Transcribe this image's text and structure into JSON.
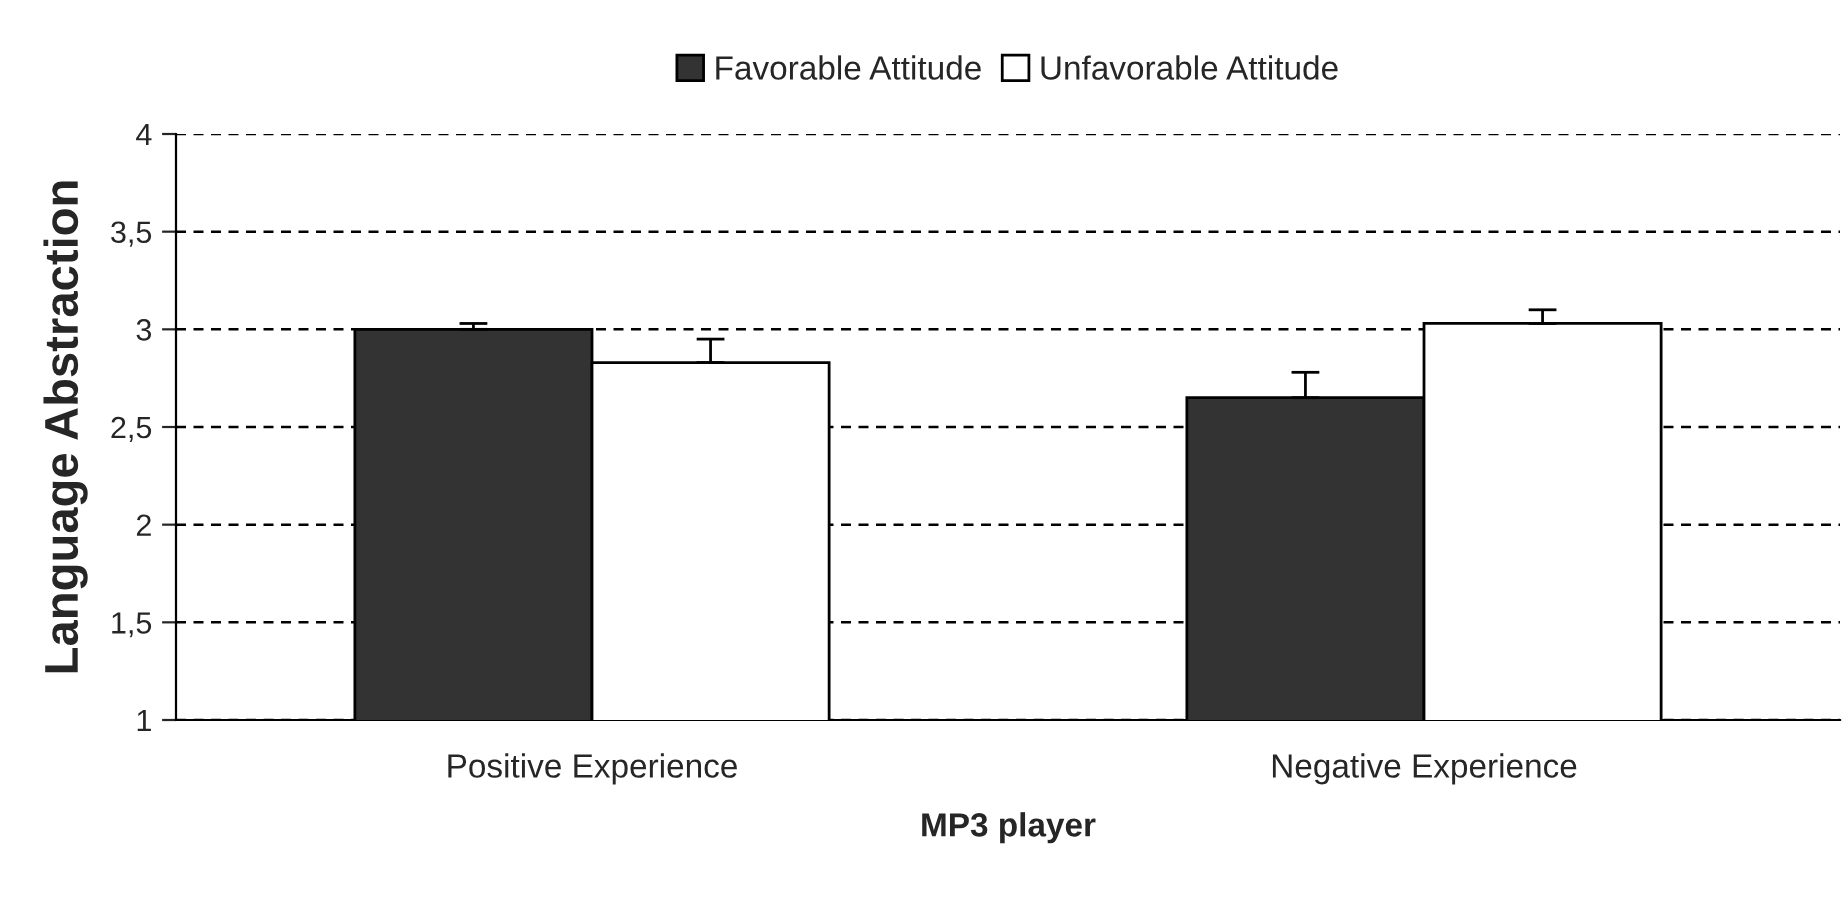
{
  "chart_data": {
    "type": "bar",
    "xlabel": "MP3 player",
    "ylabel": "Language Abstraction",
    "categories": [
      "Positive Experience",
      "Negative Experience"
    ],
    "series": [
      {
        "name": "Favorable Attitude",
        "color": "#333333",
        "values": [
          3.0,
          2.65
        ],
        "errors": [
          [
            3.0,
            3.03
          ],
          [
            2.65,
            2.78
          ]
        ]
      },
      {
        "name": "Unfavorable Attitude",
        "color": "#ffffff",
        "values": [
          2.83,
          3.03
        ],
        "errors": [
          [
            2.83,
            2.95
          ],
          [
            3.03,
            3.1
          ]
        ]
      }
    ],
    "ylim": [
      1,
      4
    ],
    "yticks": [
      {
        "value": 1,
        "label": "1"
      },
      {
        "value": 1.5,
        "label": "1,5"
      },
      {
        "value": 2,
        "label": "2"
      },
      {
        "value": 2.5,
        "label": "2,5"
      },
      {
        "value": 3,
        "label": "3"
      },
      {
        "value": 3.5,
        "label": "3,5"
      },
      {
        "value": 4,
        "label": "4"
      }
    ],
    "grid": "y",
    "legend": "top"
  }
}
